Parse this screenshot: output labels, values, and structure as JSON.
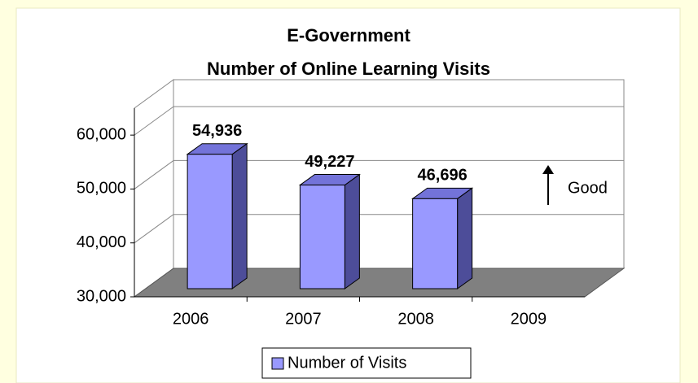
{
  "chart_data": {
    "type": "bar3d",
    "title": "E-Government",
    "subtitle": "Number of Online Learning Visits",
    "categories": [
      "2006",
      "2007",
      "2008",
      "2009"
    ],
    "series": [
      {
        "name": "Number of Visits",
        "color": "#9999ff",
        "values": [
          54936,
          49227,
          46696,
          null
        ],
        "value_labels": [
          "54,936",
          "49,227",
          "46,696",
          null
        ]
      }
    ],
    "ylim": [
      30000,
      65000
    ],
    "yticks": [
      {
        "value": 30000,
        "label": "30,000"
      },
      {
        "value": 40000,
        "label": "40,000"
      },
      {
        "value": 50000,
        "label": "50,000"
      },
      {
        "value": 60000,
        "label": "60,000"
      }
    ],
    "grid": true,
    "annotation": "Good",
    "legend": "bottom"
  }
}
